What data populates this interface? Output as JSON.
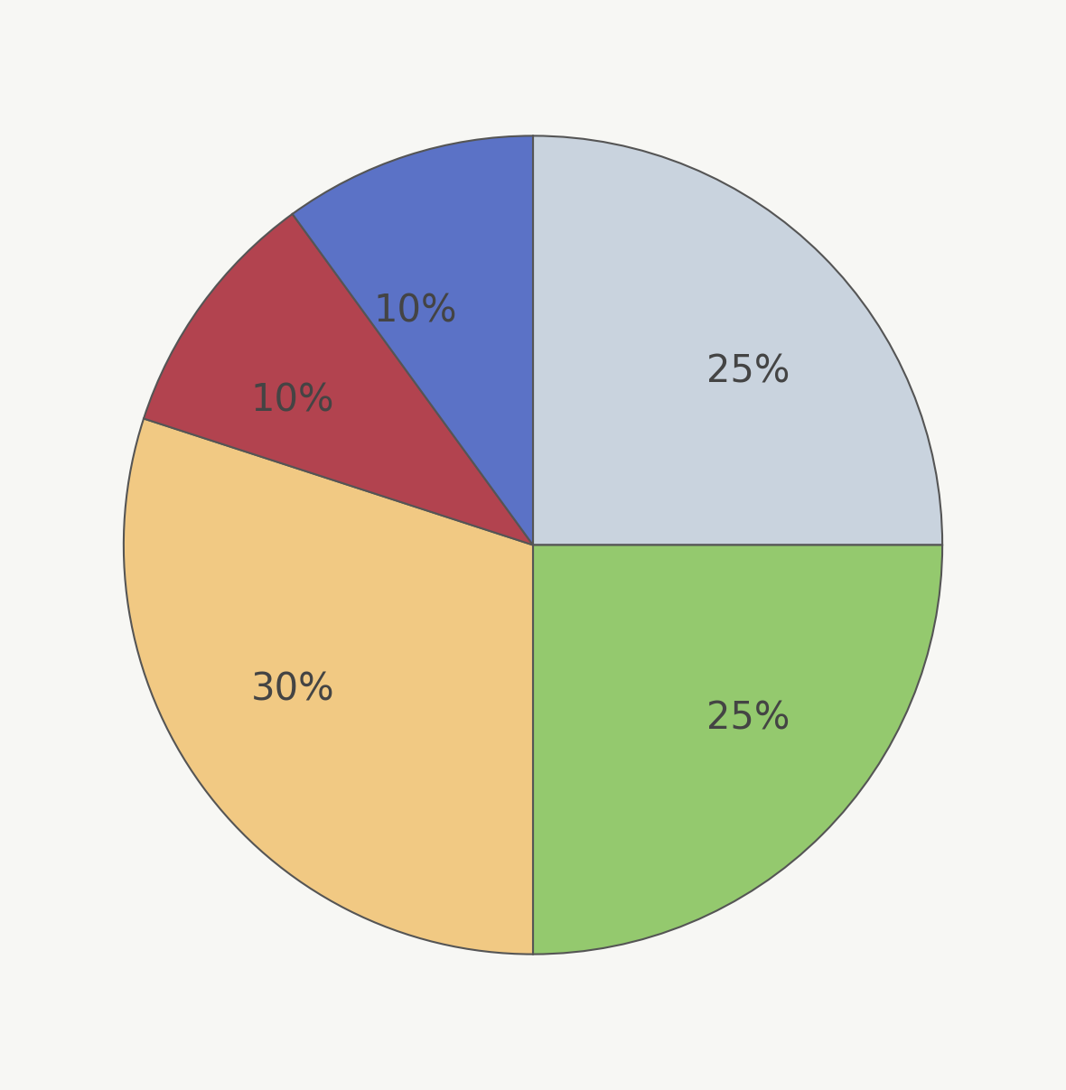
{
  "chart_data": {
    "type": "pie",
    "values": [
      25,
      25,
      30,
      10,
      10
    ],
    "value_labels": [
      "25%",
      "25%",
      "30%",
      "10%",
      "10%"
    ],
    "colors": [
      "#c9d3de",
      "#94c96e",
      "#f1c983",
      "#b2434f",
      "#5b72c6"
    ],
    "data_labels": true
  }
}
